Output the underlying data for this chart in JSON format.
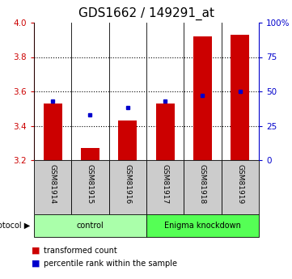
{
  "title": "GDS1662 / 149291_at",
  "samples": [
    "GSM81914",
    "GSM81915",
    "GSM81916",
    "GSM81917",
    "GSM81918",
    "GSM81919"
  ],
  "transformed_counts": [
    3.53,
    3.27,
    3.43,
    3.53,
    3.92,
    3.93
  ],
  "percentile_ranks": [
    43,
    33,
    38,
    43,
    47,
    50
  ],
  "bar_baseline": 3.2,
  "ylim_left": [
    3.2,
    4.0
  ],
  "ylim_right": [
    0,
    100
  ],
  "yticks_left": [
    3.2,
    3.4,
    3.6,
    3.8,
    4.0
  ],
  "yticks_right": [
    0,
    25,
    50,
    75,
    100
  ],
  "ytick_labels_right": [
    "0",
    "25",
    "50",
    "75",
    "100%"
  ],
  "bar_color": "#cc0000",
  "point_color": "#0000cc",
  "grid_color": "#000000",
  "title_fontsize": 11,
  "group_bounds": [
    [
      -0.5,
      2.5,
      "control",
      "#aaffaa"
    ],
    [
      2.5,
      5.5,
      "Enigma knockdown",
      "#55ff55"
    ]
  ],
  "protocol_label": "protocol",
  "legend_labels": [
    "transformed count",
    "percentile rank within the sample"
  ],
  "legend_colors": [
    "#cc0000",
    "#0000cc"
  ],
  "bar_width": 0.5,
  "background_color": "#ffffff",
  "label_area_color": "#cccccc",
  "left_axis_color": "#cc0000",
  "right_axis_color": "#0000cc",
  "grid_yticks": [
    3.4,
    3.6,
    3.8
  ]
}
